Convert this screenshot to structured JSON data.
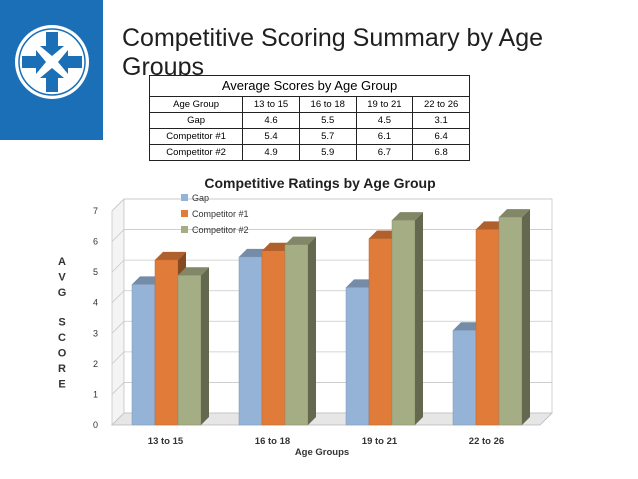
{
  "slide": {
    "title": "Competitive Scoring Summary by Age Groups",
    "brand_color": "#1a6fb7"
  },
  "table": {
    "caption": "Average Scores by Age Group",
    "headers": [
      "Age Group",
      "13 to 15",
      "16 to 18",
      "19 to 21",
      "22 to 26"
    ],
    "rows": [
      [
        "Gap",
        "4.6",
        "5.5",
        "4.5",
        "3.1"
      ],
      [
        "Competitor #1",
        "5.4",
        "5.7",
        "6.1",
        "6.4"
      ],
      [
        "Competitor #2",
        "4.9",
        "5.9",
        "6.7",
        "6.8"
      ]
    ]
  },
  "chart_data": {
    "type": "bar",
    "title": "Competitive Ratings by Age Group",
    "xlabel": "Age Groups",
    "ylabel": "AVG SCORE",
    "categories": [
      "13 to 15",
      "16 to 18",
      "19 to 21",
      "22 to 26"
    ],
    "series": [
      {
        "name": "Gap",
        "values": [
          4.6,
          5.5,
          4.5,
          3.1
        ],
        "color": "#95b3d7"
      },
      {
        "name": "Competitor #1",
        "values": [
          5.4,
          5.7,
          6.1,
          6.4
        ],
        "color": "#e07b39"
      },
      {
        "name": "Competitor #2",
        "values": [
          4.9,
          5.9,
          6.7,
          6.8
        ],
        "color": "#a5ad84"
      }
    ],
    "ylim": [
      0,
      7
    ],
    "yticks": [
      0,
      1,
      2,
      3,
      4,
      5,
      6,
      7
    ],
    "grid": true,
    "legend_position": "top-left",
    "style": "3d-column"
  }
}
